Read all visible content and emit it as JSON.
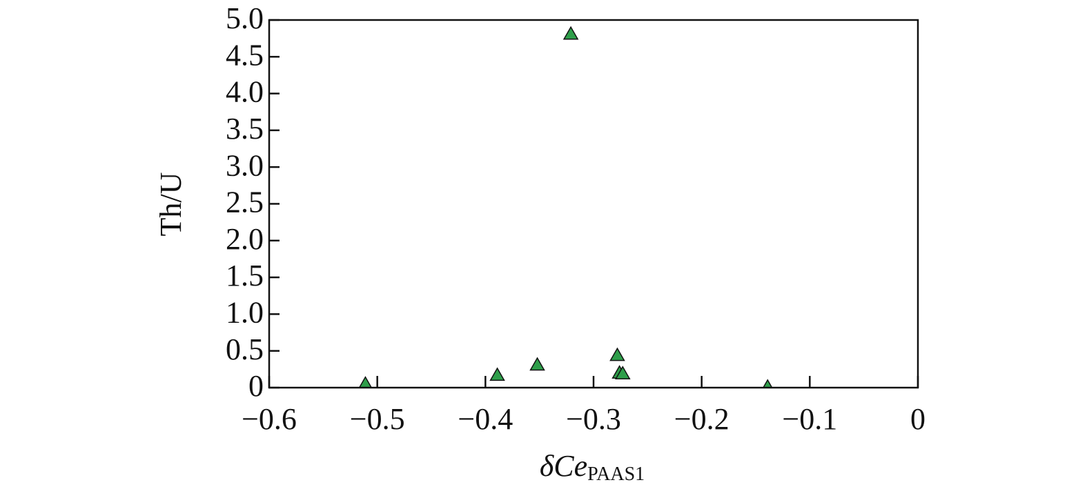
{
  "chart_data": {
    "type": "scatter",
    "x_label": "δCe",
    "x_label_sub": "PAAS1",
    "y_label": "Th/U",
    "series": [
      {
        "color": "#2e9e4a",
        "x": [
          -0.511,
          -0.389,
          -0.352,
          -0.321,
          -0.278,
          -0.276,
          -0.273,
          -0.139
        ],
        "values": [
          0.05,
          0.17,
          0.31,
          4.81,
          0.44,
          0.2,
          0.19,
          0.01
        ]
      }
    ],
    "xlim": [
      -0.6,
      0
    ],
    "ylim": [
      0,
      5
    ],
    "xticks": [
      {
        "value": -0.6,
        "label": "−0.6"
      },
      {
        "value": -0.5,
        "label": "−0.5"
      },
      {
        "value": -0.4,
        "label": "−0.4"
      },
      {
        "value": -0.3,
        "label": "−0.3"
      },
      {
        "value": -0.2,
        "label": "−0.2"
      },
      {
        "value": -0.1,
        "label": "−0.1"
      },
      0
    ],
    "yticks": [
      0,
      0.5,
      {
        "value": 1,
        "label": "1.0"
      },
      1.5,
      {
        "value": 2,
        "label": "2.0"
      },
      2.5,
      {
        "value": 3,
        "label": "3.0"
      },
      3.5,
      {
        "value": 4,
        "label": "4.0"
      },
      4.5,
      {
        "value": 5,
        "label": "5.0"
      }
    ]
  }
}
